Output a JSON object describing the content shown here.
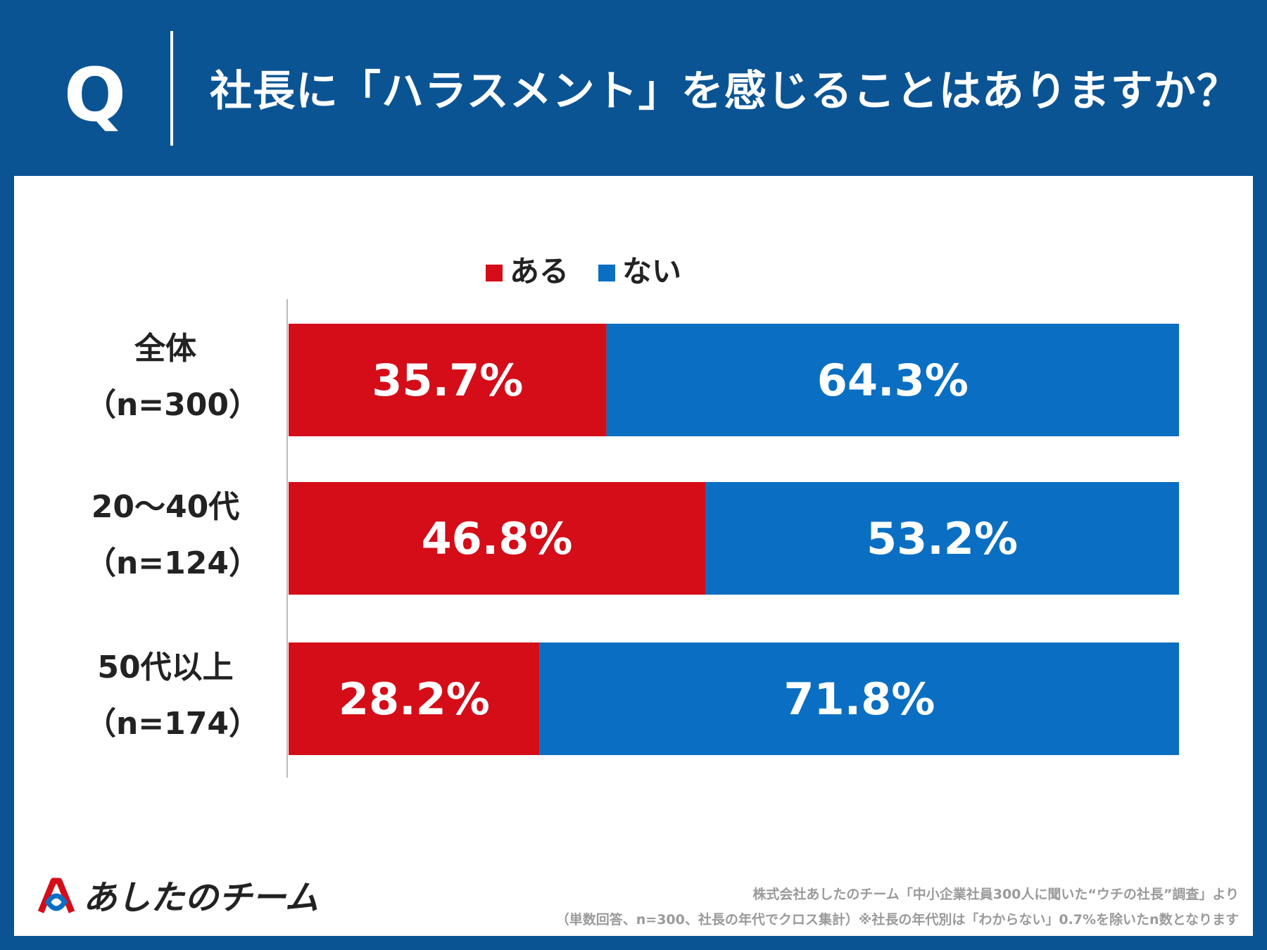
{
  "header": {
    "q_mark": "Q",
    "title": "社長に「ハラスメント」を感じることはありますか？"
  },
  "chart_data": {
    "type": "bar",
    "stacked": true,
    "orientation": "horizontal",
    "legend": [
      "ある",
      "ない"
    ],
    "legend_position": "top",
    "categories": [
      {
        "line1": "全体",
        "line2": "（n=300）"
      },
      {
        "line1": "20～40代",
        "line2": "（n=124）"
      },
      {
        "line1": "50代以上",
        "line2": "（n=174）"
      }
    ],
    "series": [
      {
        "name": "ある",
        "color": "#d40d19",
        "values": [
          35.7,
          46.8,
          28.2
        ],
        "labels": [
          "35.7%",
          "46.8%",
          "28.2%"
        ]
      },
      {
        "name": "ない",
        "color": "#0a6fc2",
        "values": [
          64.3,
          53.2,
          71.8
        ],
        "labels": [
          "64.3%",
          "53.2%",
          "71.8%"
        ]
      }
    ],
    "xlim": [
      0,
      100
    ],
    "unit": "%"
  },
  "logo": {
    "text": "あしたのチーム",
    "colors": {
      "red": "#d40d19",
      "blue": "#0a6fc2"
    }
  },
  "source": {
    "line1": "株式会社あしたのチーム「中小企業社員300人に聞いた“ウチの社長”調査」より",
    "line2": "（単数回答、n=300、社長の年代でクロス集計）※社長の年代別は「わからない」0.7%を除いたn数となります"
  }
}
